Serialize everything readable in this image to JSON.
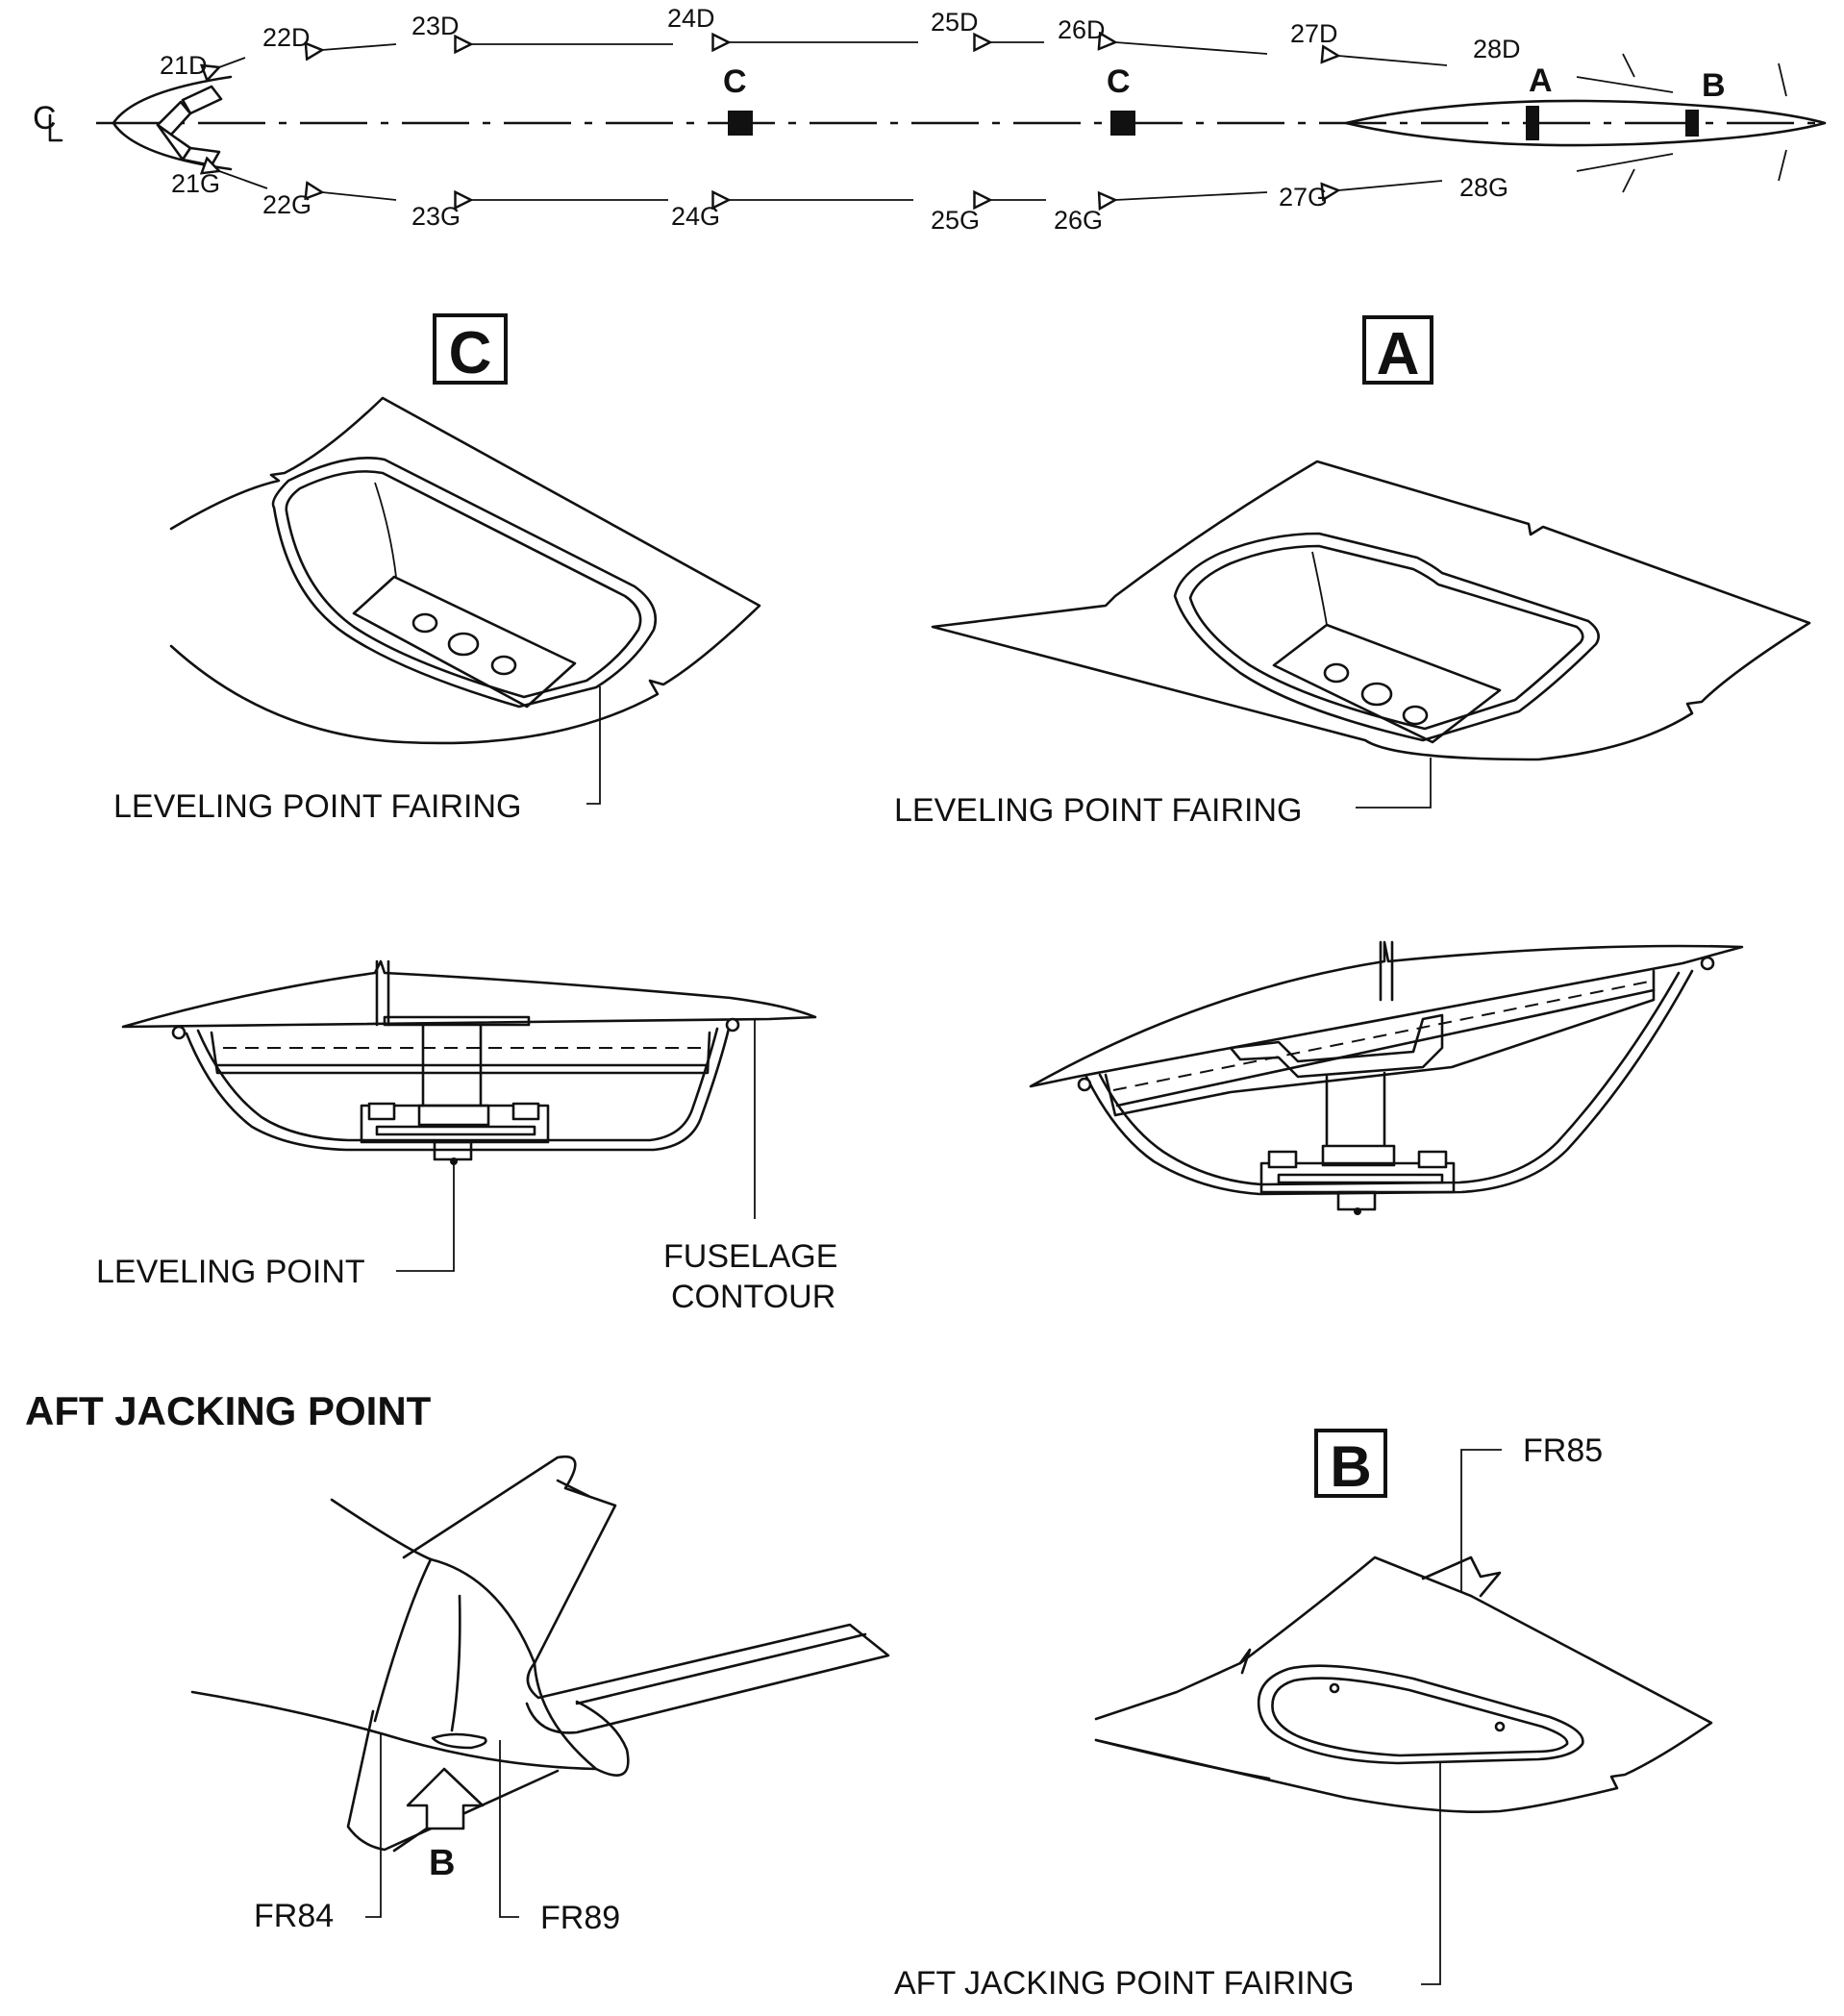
{
  "centerline_symbol": "CL",
  "frame_labels_top": [
    "21D",
    "22D",
    "23D",
    "24D",
    "25D",
    "26D",
    "27D",
    "28D"
  ],
  "frame_labels_bottom": [
    "21G",
    "22G",
    "23G",
    "24G",
    "25G",
    "26G",
    "27G",
    "28G"
  ],
  "point_markers": {
    "c1": "C",
    "c2": "C",
    "a": "A",
    "b": "B"
  },
  "views": {
    "c": {
      "title": "C",
      "fairing_label": "LEVELING POINT FAIRING"
    },
    "a": {
      "title": "A",
      "fairing_label": "LEVELING POINT FAIRING"
    },
    "section": {
      "leveling_point_label": "LEVELING POINT",
      "fuselage_contour_label_1": "FUSELAGE",
      "fuselage_contour_label_2": "CONTOUR"
    },
    "aft_jacking": {
      "heading": "AFT JACKING POINT",
      "arrow_label": "B",
      "fr84": "FR84",
      "fr89": "FR89"
    },
    "b": {
      "title": "B",
      "fr85": "FR85",
      "fairing_label": "AFT JACKING POINT FAIRING"
    }
  }
}
